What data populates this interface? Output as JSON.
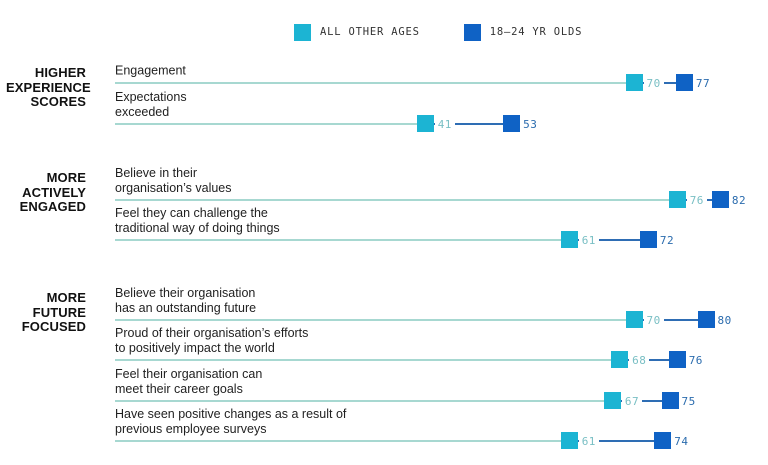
{
  "legend": {
    "items": [
      {
        "label": "ALL OTHER AGES",
        "color": "#1cb4d3"
      },
      {
        "label": "18–24 YR OLDS",
        "color": "#0f62c5"
      }
    ]
  },
  "chart_data": {
    "type": "scatter",
    "subtype": "dumbbell",
    "title": "",
    "xlim": [
      0,
      100
    ],
    "grid": false,
    "legend_position": "top",
    "series": [
      {
        "name": "ALL OTHER AGES",
        "color": "#1cb4d3",
        "value_text_color": "#79bfc4"
      },
      {
        "name": "18–24 YR OLDS",
        "color": "#0f62c5",
        "value_text_color": "#2b6cae"
      }
    ],
    "groups": [
      {
        "title": "HIGHER\nEXPERIENCE\nSCORES",
        "rows": [
          {
            "label": "Engagement",
            "all_other_ages": 70,
            "age_18_24": 77
          },
          {
            "label": "Expectations\nexceeded",
            "all_other_ages": 41,
            "age_18_24": 53
          }
        ]
      },
      {
        "title": "MORE\nACTIVELY\nENGAGED",
        "rows": [
          {
            "label": "Believe in their\norganisation’s values",
            "all_other_ages": 76,
            "age_18_24": 82
          },
          {
            "label": "Feel they can challenge the\ntraditional way of doing things",
            "all_other_ages": 61,
            "age_18_24": 72
          }
        ]
      },
      {
        "title": "MORE\nFUTURE\nFOCUSED",
        "rows": [
          {
            "label": "Believe their organisation\nhas an outstanding future",
            "all_other_ages": 70,
            "age_18_24": 80
          },
          {
            "label": "Proud of their organisation’s efforts\nto positively impact the world",
            "all_other_ages": 68,
            "age_18_24": 76
          },
          {
            "label": "Feel their organisation can\nmeet their career goals",
            "all_other_ages": 67,
            "age_18_24": 75
          },
          {
            "label": "Have seen positive changes as a result of\nprevious employee surveys",
            "all_other_ages": 61,
            "age_18_24": 74
          }
        ]
      }
    ],
    "colors": {
      "track_line": "#a7d8d1",
      "connector_line": "#2e6db4",
      "marker_all_other_ages": "#1cb4d3",
      "marker_18_24": "#0f62c5",
      "value_all_other_ages": "#79bfc4",
      "value_18_24": "#2b6cae"
    }
  }
}
